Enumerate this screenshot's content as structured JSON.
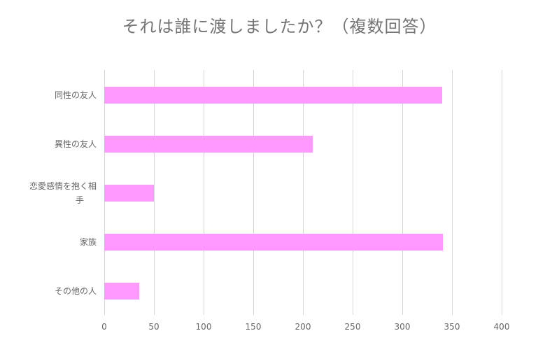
{
  "chart_data": {
    "type": "bar",
    "orientation": "horizontal",
    "title": "それは誰に渡しましたか？（複数回答）",
    "categories": [
      "同性の友人",
      "異性の友人",
      "恋愛感情を抱く相手",
      "家族",
      "その他の人"
    ],
    "category_display": [
      "同性の友人",
      "異性の友人",
      "恋愛感情を抱く相\n手",
      "家族",
      "その他の人"
    ],
    "values": [
      340,
      210,
      50,
      341,
      35
    ],
    "xlabel": "",
    "ylabel": "",
    "xlim": [
      0,
      400
    ],
    "xticks": [
      0,
      50,
      100,
      150,
      200,
      250,
      300,
      350,
      400
    ],
    "grid": true,
    "legend": null,
    "bar_color": "#ff99ff"
  }
}
